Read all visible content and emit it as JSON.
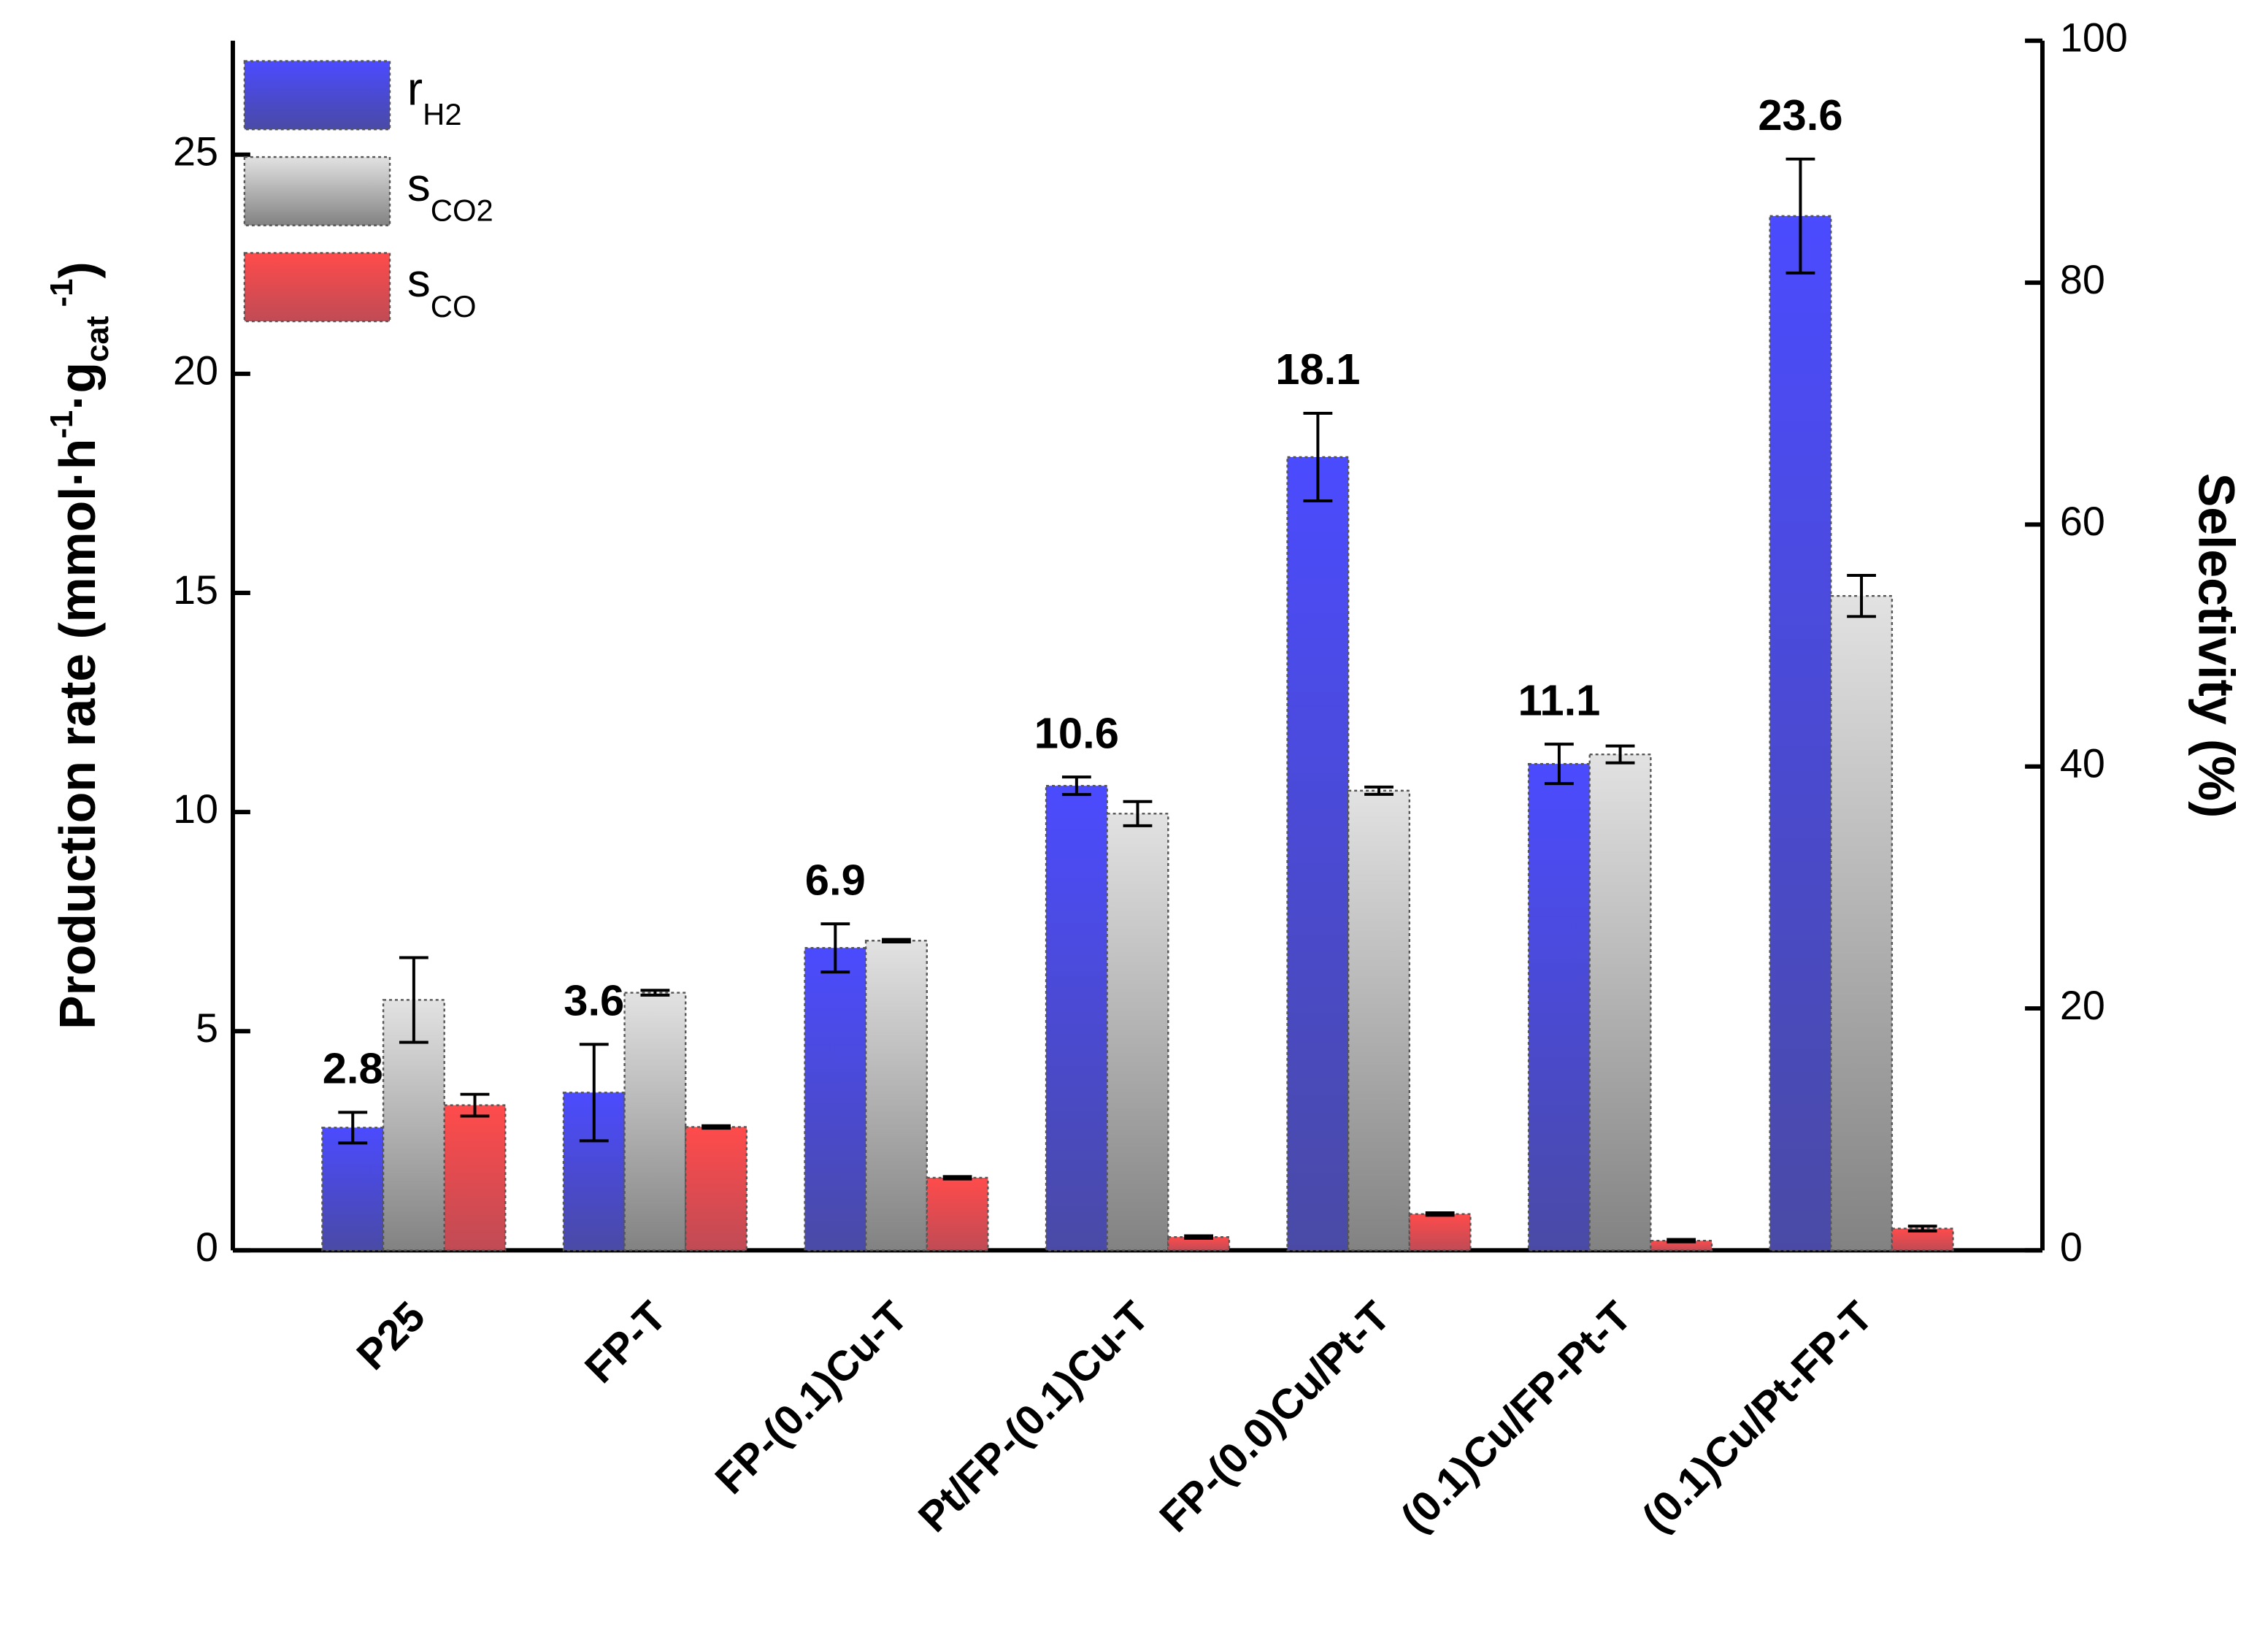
{
  "chart_data": {
    "type": "bar",
    "categories": [
      "P25",
      "FP-T",
      "FP-(0.1)Cu-T",
      "Pt/FP-(0.1)Cu-T",
      "FP-(0.0)Cu/Pt-T",
      "(0.1)Cu/FP-Pt-T",
      "(0.1)Cu/Pt-FP-T"
    ],
    "series": [
      {
        "name": "r",
        "name_sub": "H2",
        "color": "#4b4bff",
        "color_bottom": "#4a4aa6",
        "axis": "y",
        "values": [
          2.8,
          3.6,
          6.9,
          10.6,
          18.1,
          11.1,
          23.6
        ],
        "errors": [
          0.35,
          1.1,
          0.55,
          0.2,
          1.0,
          0.45,
          1.3
        ]
      },
      {
        "name": "s",
        "name_sub": "CO2",
        "color": "#e2e2e2",
        "color_bottom": "#828282",
        "axis": "y2",
        "values": [
          20.7,
          21.3,
          25.6,
          36.1,
          38.0,
          41.0,
          54.1
        ],
        "errors": [
          3.5,
          0.2,
          0.1,
          1.0,
          0.3,
          0.7,
          1.7
        ]
      },
      {
        "name": "s",
        "name_sub": "CO",
        "color": "#ff4b4b",
        "color_bottom": "#c04b55",
        "axis": "y2",
        "values": [
          12.0,
          10.2,
          6.0,
          1.1,
          3.0,
          0.8,
          1.8
        ],
        "errors": [
          0.9,
          0.1,
          0.1,
          0.1,
          0.1,
          0.1,
          0.2
        ]
      }
    ],
    "ylabel_parts": [
      {
        "text": "Production rate (mmol·h"
      },
      {
        "text": "-1",
        "pos": "sup"
      },
      {
        "text": "·g"
      },
      {
        "text": "cat",
        "pos": "sub"
      },
      {
        "text": " -1",
        "pos": "sup"
      },
      {
        "text": ")"
      }
    ],
    "y2label": "Selectivity (%)",
    "ylim": [
      0,
      27.6
    ],
    "yticks": [
      0,
      5,
      10,
      15,
      20,
      25
    ],
    "y2lim": [
      0,
      100
    ],
    "y2ticks": [
      0,
      20,
      40,
      60,
      80,
      100
    ],
    "legend": "upper left"
  }
}
